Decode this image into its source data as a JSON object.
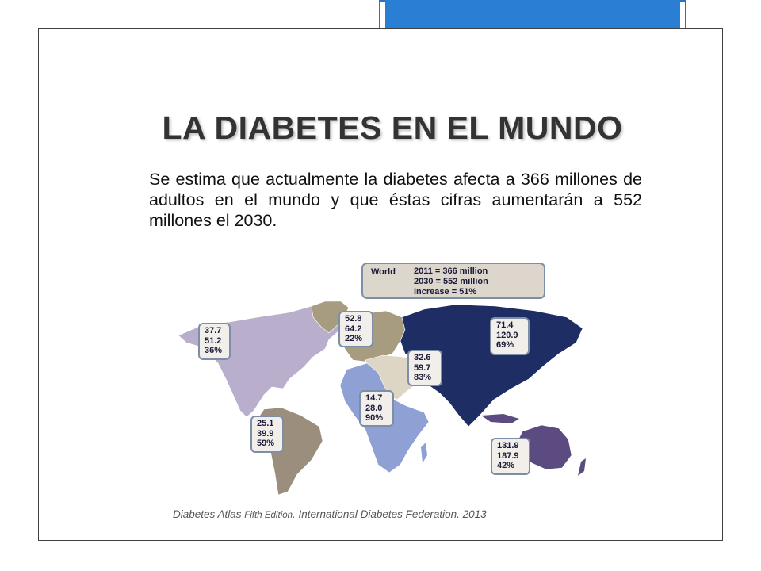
{
  "slide": {
    "title": "LA DIABETES EN EL MUNDO",
    "body": "Se estima que actualmente la diabetes afecta a 366 millones de adultos en el mundo y que éstas cifras aumentarán a 552 millones el 2030."
  },
  "world_box": {
    "label": "World",
    "line_2011": "2011 = 366 million",
    "line_2030": "2030 = 552 million",
    "line_increase": "Increase = 51%"
  },
  "regions": {
    "north_america": {
      "v2011": "37.7",
      "v2030": "51.2",
      "pct": "36%"
    },
    "europe": {
      "v2011": "52.8",
      "v2030": "64.2",
      "pct": "22%"
    },
    "middle_east": {
      "v2011": "32.6",
      "v2030": "59.7",
      "pct": "83%"
    },
    "asia": {
      "v2011": "71.4",
      "v2030": "120.9",
      "pct": "69%"
    },
    "africa": {
      "v2011": "14.7",
      "v2030": "28.0",
      "pct": "90%"
    },
    "south_america": {
      "v2011": "25.1",
      "v2030": "39.9",
      "pct": "59%"
    },
    "western_pacific": {
      "v2011": "131.9",
      "v2030": "187.9",
      "pct": "42%"
    }
  },
  "colors": {
    "north_america": "#b9aecb",
    "europe": "#a79c7f",
    "middle_east": "#ddd6c4",
    "asia": "#1e2d63",
    "africa": "#8fa1d4",
    "south_america": "#9b8e7c",
    "western_pacific": "#5c4b80",
    "accent_blue": "#2a7fd4"
  },
  "citation": {
    "part1": "Diabetes Atlas ",
    "part2": "Fifth Edition",
    "part3": ". International Diabetes Federation. 2013"
  }
}
